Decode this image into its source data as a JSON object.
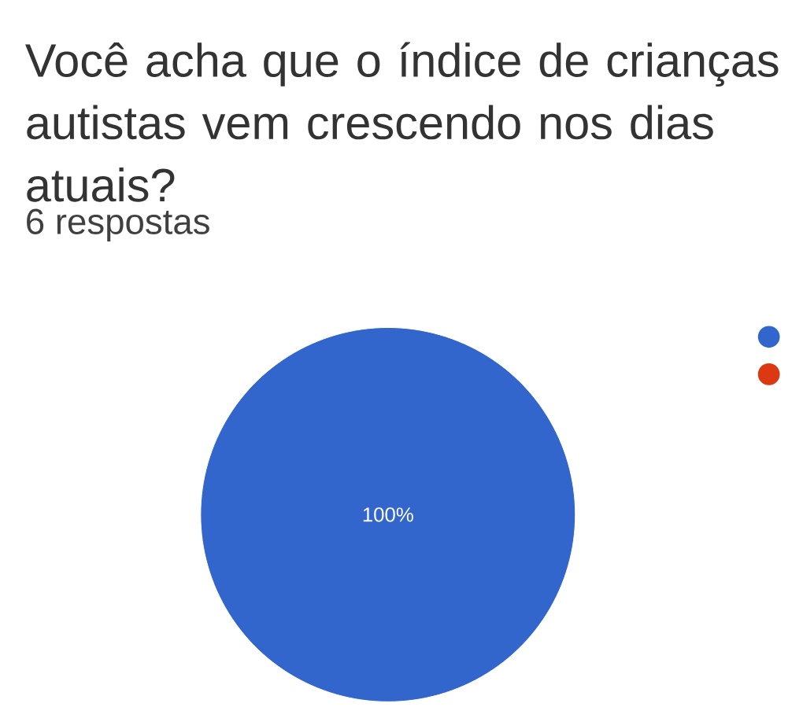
{
  "chart_data": {
    "type": "pie",
    "title": "Você acha que o índice de crianças autistas vem crescendo nos dias atuais?",
    "subtitle": "6 respostas",
    "categories": [
      null,
      null
    ],
    "values": [
      100,
      0
    ],
    "colors": [
      "#3366cc",
      "#dc3912"
    ],
    "value_labels": [
      "100%",
      null
    ]
  }
}
